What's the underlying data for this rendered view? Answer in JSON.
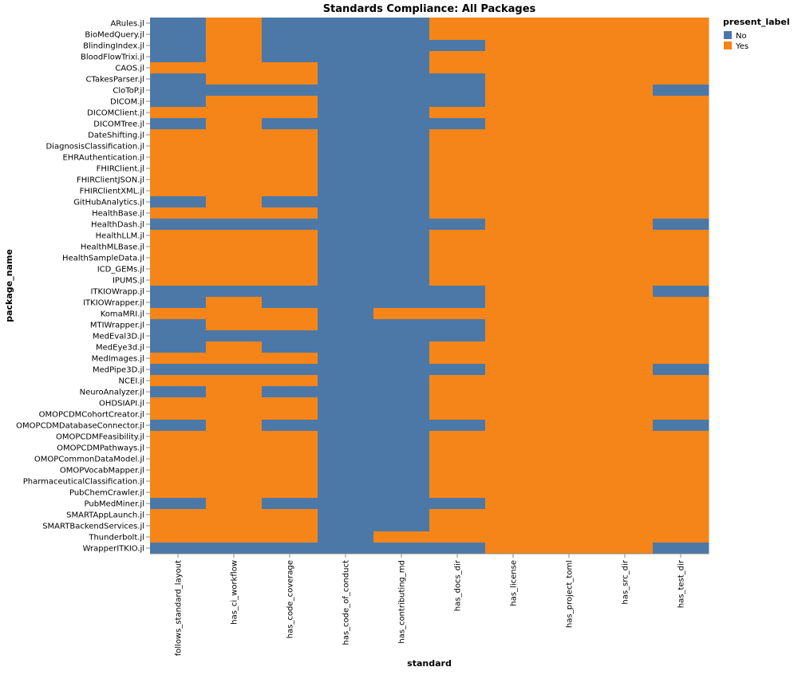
{
  "chart_data": {
    "type": "heatmap",
    "title": "Standards Compliance: All Packages",
    "xlabel": "standard",
    "ylabel": "package_name",
    "legend": {
      "title": "present_label",
      "placement": "top-right",
      "entries": [
        {
          "label": "No",
          "color": "#4c78a8"
        },
        {
          "label": "Yes",
          "color": "#f58518"
        }
      ]
    },
    "x": [
      "follows_standard_layout",
      "has_ci_workflow",
      "has_code_coverage",
      "has_code_of_conduct",
      "has_contributing_md",
      "has_docs_dir",
      "has_license",
      "has_project_toml",
      "has_src_dir",
      "has_test_dir"
    ],
    "y": [
      "ARules.jl",
      "BioMedQuery.jl",
      "BlindingIndex.jl",
      "BloodFlowTrixi.jl",
      "CAOS.jl",
      "CTakesParser.jl",
      "CloToP.jl",
      "DICOM.jl",
      "DICOMClient.jl",
      "DICOMTree.jl",
      "DateShifting.jl",
      "DiagnosisClassification.jl",
      "EHRAuthentication.jl",
      "FHIRClient.jl",
      "FHIRClientJSON.jl",
      "FHIRClientXML.jl",
      "GitHubAnalytics.jl",
      "HealthBase.jl",
      "HealthDash.jl",
      "HealthLLM.jl",
      "HealthMLBase.jl",
      "HealthSampleData.jl",
      "ICD_GEMs.jl",
      "IPUMS.jl",
      "ITKIOWrapp.jl",
      "ITKIOWrapper.jl",
      "KomaMRI.jl",
      "MTIWrapper.jl",
      "MedEval3D.jl",
      "MedEye3d.jl",
      "MedImages.jl",
      "MedPipe3D.jl",
      "NCEI.jl",
      "NeuroAnalyzer.jl",
      "OHDSIAPI.jl",
      "OMOPCDMCohortCreator.jl",
      "OMOPCDMDatabaseConnector.jl",
      "OMOPCDMFeasibility.jl",
      "OMOPCDMPathways.jl",
      "OMOPCommonDataModel.jl",
      "OMOPVocabMapper.jl",
      "PharmaceuticalClassification.jl",
      "PubChemCrawler.jl",
      "PubMedMiner.jl",
      "SMARTAppLaunch.jl",
      "SMARTBackendServices.jl",
      "Thunderbolt.jl",
      "WrapperITKIO.jl"
    ],
    "values": [
      [
        0,
        1,
        0,
        0,
        0,
        1,
        1,
        1,
        1,
        1
      ],
      [
        0,
        1,
        0,
        0,
        0,
        1,
        1,
        1,
        1,
        1
      ],
      [
        0,
        1,
        0,
        0,
        0,
        0,
        1,
        1,
        1,
        1
      ],
      [
        0,
        1,
        0,
        0,
        0,
        1,
        1,
        1,
        1,
        1
      ],
      [
        1,
        1,
        1,
        0,
        0,
        1,
        1,
        1,
        1,
        1
      ],
      [
        0,
        1,
        1,
        0,
        0,
        0,
        1,
        1,
        1,
        1
      ],
      [
        0,
        0,
        0,
        0,
        0,
        0,
        1,
        1,
        1,
        0
      ],
      [
        0,
        1,
        1,
        0,
        0,
        0,
        1,
        1,
        1,
        1
      ],
      [
        1,
        1,
        1,
        0,
        0,
        1,
        1,
        1,
        1,
        1
      ],
      [
        0,
        1,
        0,
        0,
        0,
        0,
        1,
        1,
        1,
        1
      ],
      [
        1,
        1,
        1,
        0,
        0,
        1,
        1,
        1,
        1,
        1
      ],
      [
        1,
        1,
        1,
        0,
        0,
        1,
        1,
        1,
        1,
        1
      ],
      [
        1,
        1,
        1,
        0,
        0,
        1,
        1,
        1,
        1,
        1
      ],
      [
        1,
        1,
        1,
        0,
        0,
        1,
        1,
        1,
        1,
        1
      ],
      [
        1,
        1,
        1,
        0,
        0,
        1,
        1,
        1,
        1,
        1
      ],
      [
        1,
        1,
        1,
        0,
        0,
        1,
        1,
        1,
        1,
        1
      ],
      [
        0,
        1,
        0,
        0,
        0,
        1,
        1,
        1,
        1,
        1
      ],
      [
        1,
        1,
        1,
        0,
        0,
        1,
        1,
        1,
        1,
        1
      ],
      [
        0,
        0,
        0,
        0,
        0,
        0,
        1,
        1,
        1,
        0
      ],
      [
        1,
        1,
        1,
        0,
        0,
        1,
        1,
        1,
        1,
        1
      ],
      [
        1,
        1,
        1,
        0,
        0,
        1,
        1,
        1,
        1,
        1
      ],
      [
        1,
        1,
        1,
        0,
        0,
        1,
        1,
        1,
        1,
        1
      ],
      [
        1,
        1,
        1,
        0,
        0,
        1,
        1,
        1,
        1,
        1
      ],
      [
        1,
        1,
        1,
        0,
        0,
        1,
        1,
        1,
        1,
        1
      ],
      [
        0,
        0,
        0,
        0,
        0,
        0,
        1,
        1,
        1,
        0
      ],
      [
        0,
        1,
        0,
        0,
        0,
        0,
        1,
        1,
        1,
        1
      ],
      [
        1,
        1,
        1,
        0,
        1,
        1,
        1,
        1,
        1,
        1
      ],
      [
        0,
        1,
        1,
        0,
        0,
        0,
        1,
        1,
        1,
        1
      ],
      [
        0,
        0,
        0,
        0,
        0,
        0,
        1,
        1,
        1,
        1
      ],
      [
        0,
        1,
        0,
        0,
        0,
        1,
        1,
        1,
        1,
        1
      ],
      [
        1,
        1,
        1,
        0,
        0,
        1,
        1,
        1,
        1,
        1
      ],
      [
        0,
        0,
        0,
        0,
        0,
        0,
        1,
        1,
        1,
        0
      ],
      [
        1,
        1,
        1,
        0,
        0,
        1,
        1,
        1,
        1,
        1
      ],
      [
        0,
        1,
        0,
        0,
        0,
        1,
        1,
        1,
        1,
        1
      ],
      [
        1,
        1,
        1,
        0,
        0,
        1,
        1,
        1,
        1,
        1
      ],
      [
        1,
        1,
        1,
        0,
        0,
        1,
        1,
        1,
        1,
        1
      ],
      [
        0,
        1,
        0,
        0,
        0,
        0,
        1,
        1,
        1,
        0
      ],
      [
        1,
        1,
        1,
        0,
        0,
        1,
        1,
        1,
        1,
        1
      ],
      [
        1,
        1,
        1,
        0,
        0,
        1,
        1,
        1,
        1,
        1
      ],
      [
        1,
        1,
        1,
        0,
        0,
        1,
        1,
        1,
        1,
        1
      ],
      [
        1,
        1,
        1,
        0,
        0,
        1,
        1,
        1,
        1,
        1
      ],
      [
        1,
        1,
        1,
        0,
        0,
        1,
        1,
        1,
        1,
        1
      ],
      [
        1,
        1,
        1,
        0,
        0,
        1,
        1,
        1,
        1,
        1
      ],
      [
        0,
        1,
        0,
        0,
        0,
        0,
        1,
        1,
        1,
        1
      ],
      [
        1,
        1,
        1,
        0,
        0,
        1,
        1,
        1,
        1,
        1
      ],
      [
        1,
        1,
        1,
        0,
        0,
        1,
        1,
        1,
        1,
        1
      ],
      [
        1,
        1,
        1,
        0,
        1,
        1,
        1,
        1,
        1,
        1
      ],
      [
        0,
        0,
        0,
        0,
        0,
        0,
        1,
        1,
        1,
        0
      ]
    ]
  }
}
